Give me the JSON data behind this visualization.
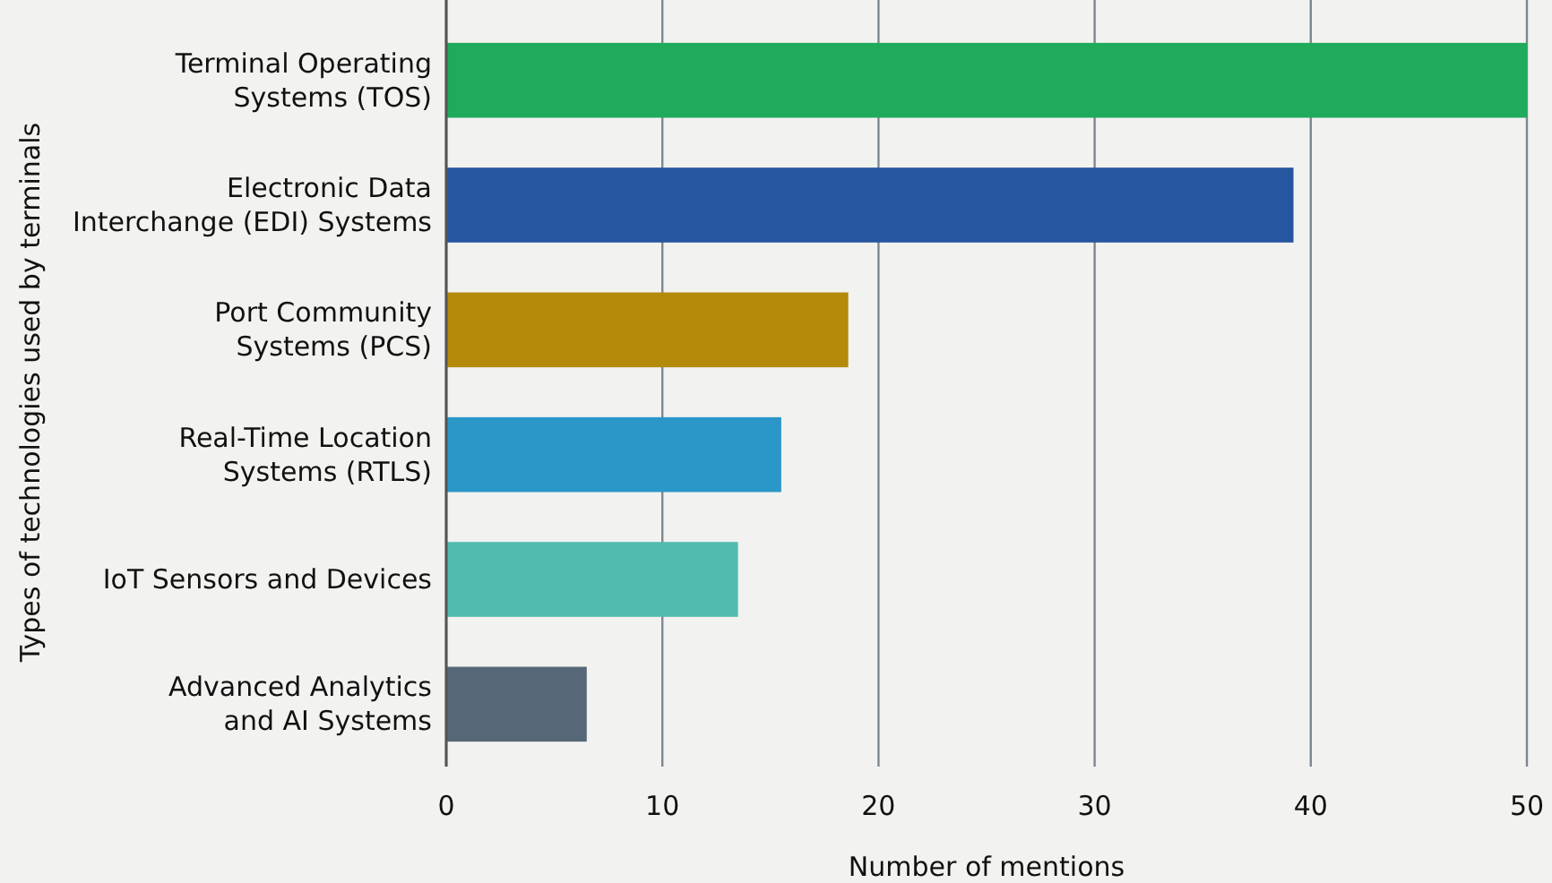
{
  "chart_data": {
    "type": "bar",
    "orientation": "horizontal",
    "xlabel": "Number of mentions",
    "ylabel": "Types of technologies used by terminals",
    "categories": [
      "Terminal Operating Systems (TOS)",
      "Electronic Data Interchange (EDI) Systems",
      "Port Community Systems (PCS)",
      "Real-Time Location Systems (RTLS)",
      "IoT Sensors and Devices",
      "Advanced Analytics and AI Systems"
    ],
    "values": [
      50,
      39.2,
      18.6,
      15.5,
      13.5,
      6.5
    ],
    "colors": [
      "#1faa5c",
      "#2656a0",
      "#b38a0a",
      "#2a97c8",
      "#52bbb0",
      "#566878"
    ],
    "xlim": [
      0,
      50
    ],
    "xticks": [
      0,
      10,
      20,
      30,
      40,
      50
    ],
    "grid": "x"
  }
}
